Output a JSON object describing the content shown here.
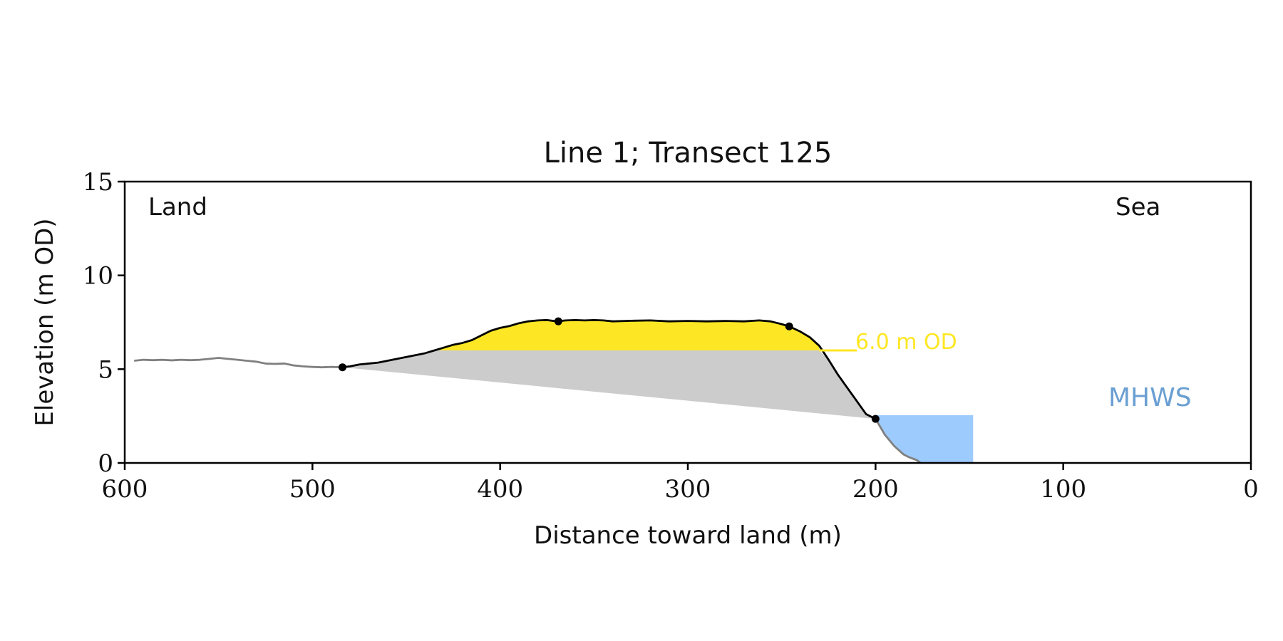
{
  "chart_data": {
    "type": "area",
    "title": "Line 1; Transect 125",
    "xlabel": "Distance toward land (m)",
    "ylabel": "Elevation (m OD)",
    "xlim": [
      600,
      0
    ],
    "ylim": [
      0,
      15
    ],
    "x_ticks": [
      600,
      500,
      400,
      300,
      200,
      100,
      0
    ],
    "y_ticks": [
      0,
      5,
      10,
      15
    ],
    "grid": false,
    "annotations": {
      "land": "Land",
      "sea": "Sea",
      "od_line": {
        "label": "6.0 m OD",
        "y": 6.0,
        "x_from": 230,
        "x_to": 210
      },
      "mhws": {
        "label": "MHWS",
        "y": 2.55,
        "x_from": 200,
        "x_to": 148
      }
    },
    "colors": {
      "profile_outside": "#808080",
      "profile_dune": "#000000",
      "yellow_fill": "#fde725",
      "grey_fill": "#cccccc",
      "water": "#9ecbfd",
      "mhws_text": "#6a9fd2",
      "od_text": "#fde725"
    },
    "series": [
      {
        "role": "profile",
        "x": [
          595,
          590,
          585,
          580,
          575,
          570,
          565,
          560,
          555,
          550,
          545,
          540,
          535,
          530,
          525,
          520,
          515,
          510,
          505,
          500,
          495,
          490,
          484,
          480,
          475,
          470,
          465,
          460,
          455,
          450,
          445,
          440,
          435,
          430,
          425,
          420,
          415,
          410,
          405,
          400,
          395,
          390,
          385,
          380,
          375,
          370,
          365,
          360,
          355,
          350,
          345,
          340,
          330,
          320,
          310,
          300,
          290,
          280,
          270,
          262,
          256,
          250,
          246,
          240,
          235,
          230,
          225,
          220,
          215,
          210,
          205,
          200,
          195,
          190,
          185,
          182,
          178,
          176
        ],
        "y": [
          5.45,
          5.5,
          5.48,
          5.5,
          5.47,
          5.5,
          5.48,
          5.5,
          5.55,
          5.6,
          5.55,
          5.5,
          5.45,
          5.4,
          5.3,
          5.28,
          5.3,
          5.2,
          5.15,
          5.12,
          5.1,
          5.12,
          5.1,
          5.15,
          5.25,
          5.3,
          5.35,
          5.45,
          5.55,
          5.65,
          5.75,
          5.85,
          6.0,
          6.15,
          6.3,
          6.4,
          6.55,
          6.8,
          7.05,
          7.2,
          7.3,
          7.45,
          7.55,
          7.6,
          7.62,
          7.55,
          7.6,
          7.62,
          7.6,
          7.62,
          7.6,
          7.55,
          7.58,
          7.6,
          7.55,
          7.57,
          7.55,
          7.57,
          7.55,
          7.6,
          7.55,
          7.4,
          7.28,
          7.0,
          6.7,
          6.25,
          5.5,
          4.7,
          4.0,
          3.3,
          2.6,
          2.35,
          1.5,
          0.9,
          0.45,
          0.3,
          0.15,
          0.0
        ]
      }
    ],
    "key_points": [
      {
        "x": 484,
        "y": 5.1
      },
      {
        "x": 369,
        "y": 7.55
      },
      {
        "x": 246,
        "y": 7.28
      },
      {
        "x": 200,
        "y": 2.35
      }
    ]
  }
}
